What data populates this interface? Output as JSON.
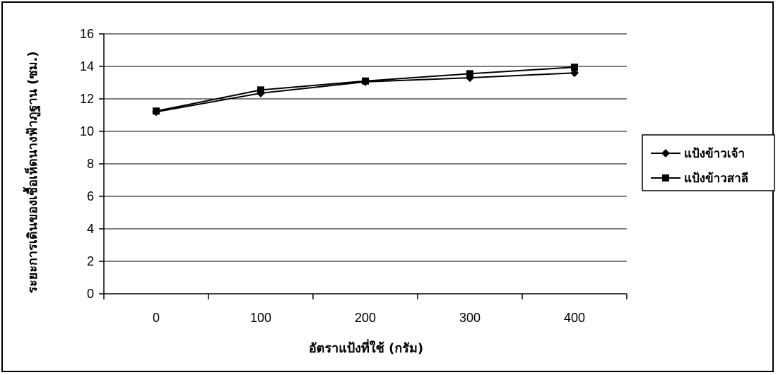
{
  "chart_data": {
    "type": "line",
    "xlabel": "อัตราแป้งที่ใช้ (กรัม)",
    "ylabel": "ระยะการเดินของเชื้อเห็ดนางฟ้าภูฐาน (ซม.)",
    "categories": [
      "0",
      "100",
      "200",
      "300",
      "400"
    ],
    "ylim": [
      0,
      16
    ],
    "yticks": [
      0,
      2,
      4,
      6,
      8,
      10,
      12,
      14,
      16
    ],
    "grid": true,
    "legend_position": "right",
    "series": [
      {
        "name": "แป้งข้าวเจ้า",
        "marker": "diamond",
        "color": "#000000",
        "values": [
          11.2,
          12.35,
          13.05,
          13.3,
          13.6
        ]
      },
      {
        "name": "แป้งข้าวสาลี",
        "marker": "square",
        "color": "#000000",
        "values": [
          11.25,
          12.55,
          13.1,
          13.55,
          13.95
        ]
      }
    ]
  }
}
